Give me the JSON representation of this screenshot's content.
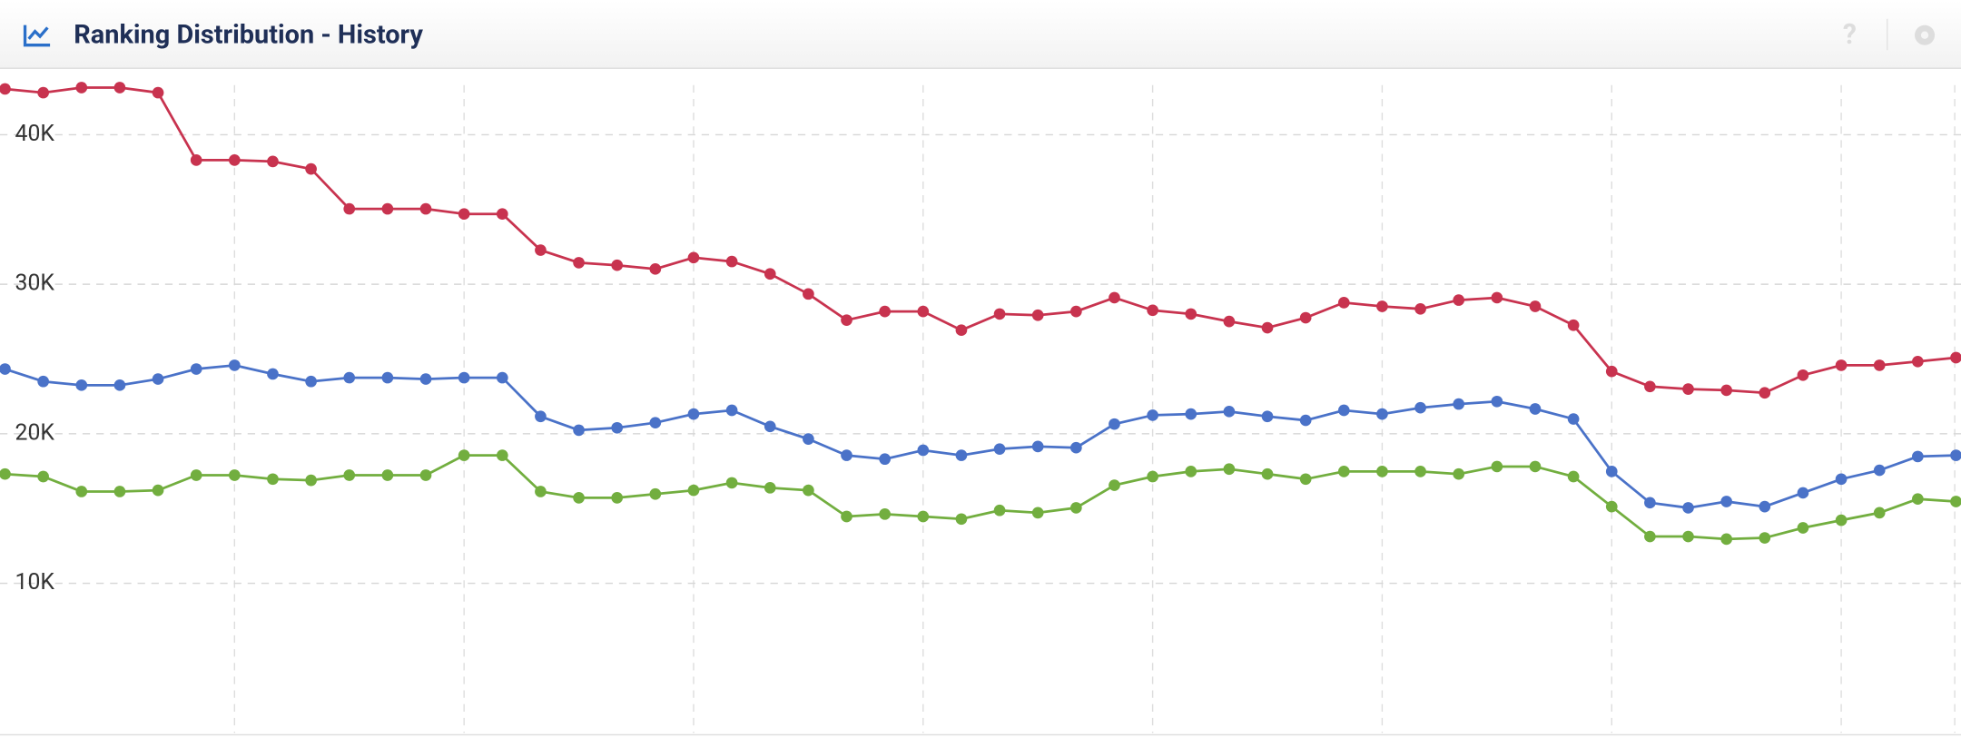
{
  "chart_data": {
    "type": "line",
    "title": "Ranking Distribution - History",
    "categories": [
      null,
      null,
      null,
      null,
      null,
      null,
      null,
      null,
      null,
      null,
      null,
      null,
      null,
      null,
      null,
      null,
      null,
      null,
      null,
      null,
      null,
      null,
      null,
      null,
      null,
      null,
      null,
      null,
      null,
      null,
      null,
      null,
      null,
      null,
      null,
      null,
      null,
      null,
      null,
      null,
      null,
      null,
      null,
      null,
      null,
      null,
      null,
      null,
      null,
      null,
      null,
      null
    ],
    "series": [
      {
        "color": "#c8334f",
        "values": [
          43060,
          42810,
          43150,
          43150,
          42810,
          38300,
          38300,
          38210,
          37710,
          35040,
          35040,
          35040,
          34700,
          34700,
          32280,
          31440,
          31270,
          31020,
          31780,
          31520,
          30690,
          29350,
          27600,
          28180,
          28180,
          26930,
          28010,
          27930,
          28180,
          29100,
          28260,
          28010,
          27510,
          27090,
          27760,
          28770,
          28520,
          28350,
          28940,
          29100,
          28520,
          27260,
          24170,
          23160,
          22990,
          22910,
          22740,
          23920,
          24580,
          24580,
          24830,
          25090
        ]
      },
      {
        "color": "#4a72c8",
        "values": [
          24330,
          23500,
          23250,
          23250,
          23660,
          24330,
          24580,
          24000,
          23500,
          23750,
          23750,
          23660,
          23750,
          23750,
          21160,
          20240,
          20400,
          20740,
          21320,
          21570,
          20490,
          19650,
          18560,
          18310,
          18900,
          18560,
          18980,
          19150,
          19070,
          20650,
          21240,
          21320,
          21490,
          21160,
          20900,
          21570,
          21320,
          21740,
          21990,
          22160,
          21660,
          20990,
          17480,
          15390,
          15050,
          15470,
          15130,
          16050,
          16970,
          17560,
          18480,
          18560
        ]
      },
      {
        "color": "#72ae3f",
        "values": [
          17310,
          17140,
          16140,
          16140,
          16220,
          17230,
          17230,
          16970,
          16890,
          17230,
          17230,
          17230,
          18560,
          18560,
          16140,
          15720,
          15720,
          15970,
          16220,
          16720,
          16390,
          16220,
          14470,
          14630,
          14470,
          14300,
          14880,
          14720,
          15050,
          16560,
          17140,
          17480,
          17640,
          17310,
          16970,
          17480,
          17480,
          17480,
          17310,
          17810,
          17810,
          17140,
          15130,
          13130,
          13130,
          12960,
          13040,
          13710,
          14220,
          14720,
          15640,
          15470
        ]
      }
    ],
    "ylim": [
      0,
      44400
    ],
    "yticks": [
      {
        "value": 10000,
        "label": "10K"
      },
      {
        "value": 20000,
        "label": "20K"
      },
      {
        "value": 30000,
        "label": "30K"
      },
      {
        "value": 40000,
        "label": "40K"
      }
    ],
    "grid": true
  }
}
